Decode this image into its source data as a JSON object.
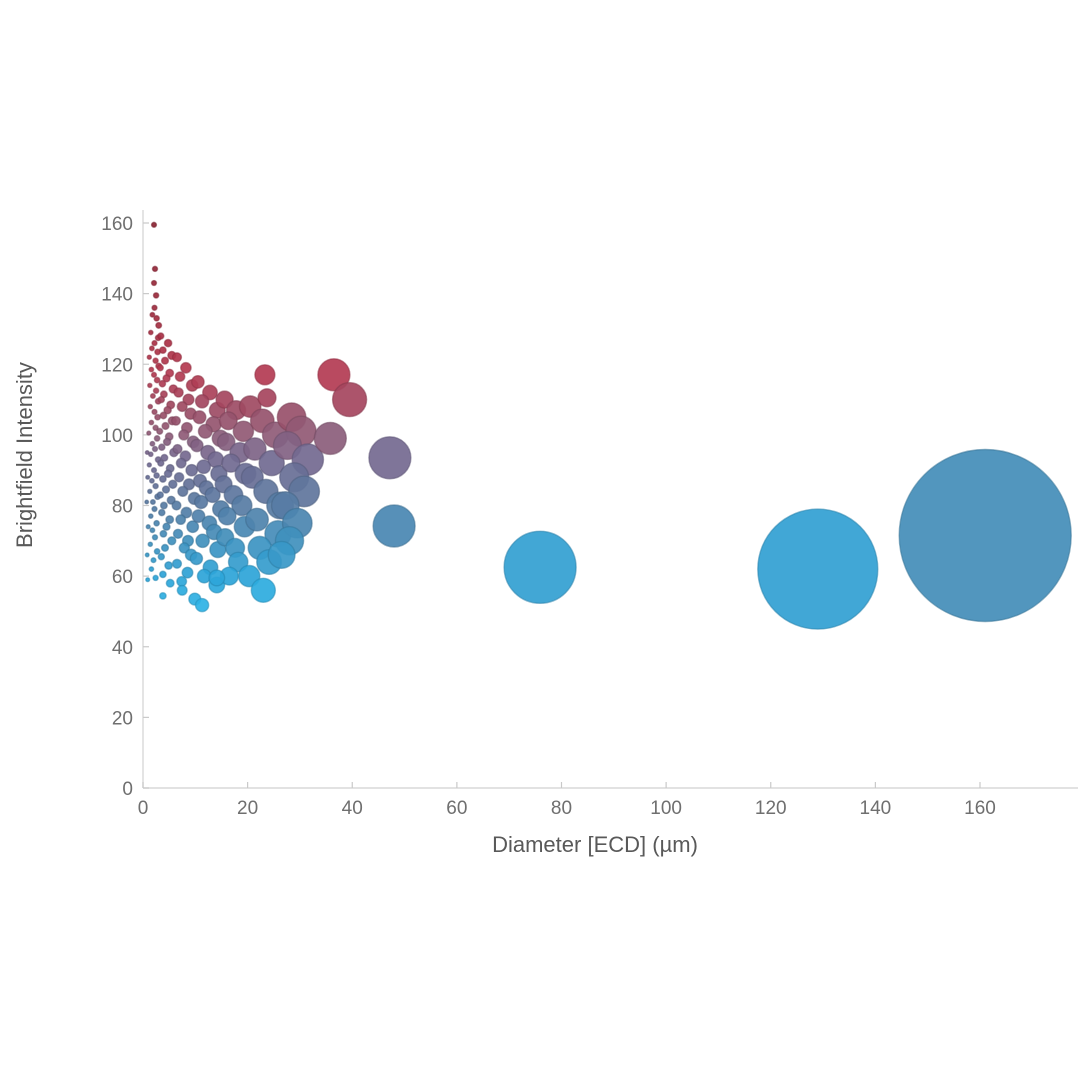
{
  "chart_data": {
    "type": "scatter",
    "title": "",
    "xlabel": "Diameter [ECD] (µm)",
    "ylabel": "Brightfield Intensity",
    "xlim": [
      0,
      178
    ],
    "ylim": [
      0,
      164
    ],
    "x_ticks": [
      0,
      20,
      40,
      60,
      80,
      100,
      120,
      140,
      160
    ],
    "y_ticks": [
      0,
      20,
      40,
      60,
      80,
      100,
      120,
      140,
      160
    ],
    "grid": false,
    "legend": "none",
    "size_encoding": "bubble radius proportional to x value (ECD diameter)",
    "color_encoding": "bubble color mapped to Brightfield Intensity: high=dark red, mid=purple, low=cyan",
    "axis_color": "#d9d9d9",
    "tick_color": "#c9c9c9",
    "color_stops": [
      [
        50,
        "#2eb5e8"
      ],
      [
        60,
        "#2da4d8"
      ],
      [
        70,
        "#4090bd"
      ],
      [
        78,
        "#527fa8"
      ],
      [
        86,
        "#647198"
      ],
      [
        94,
        "#75688f"
      ],
      [
        100,
        "#8f5b77"
      ],
      [
        106,
        "#9a4e67"
      ],
      [
        112,
        "#aa4159"
      ],
      [
        118,
        "#b53a51"
      ],
      [
        126,
        "#ab3146"
      ],
      [
        140,
        "#9a2a3c"
      ],
      [
        160,
        "#8c2433"
      ]
    ],
    "points": [
      [
        2.1,
        159.5
      ],
      [
        2.3,
        147.0
      ],
      [
        2.1,
        143.0
      ],
      [
        2.5,
        139.5
      ],
      [
        2.2,
        136.0
      ],
      [
        1.8,
        134.0
      ],
      [
        2.6,
        133.0
      ],
      [
        3.0,
        131.0
      ],
      [
        1.5,
        129.0
      ],
      [
        2.9,
        127.5
      ],
      [
        2.2,
        126.0
      ],
      [
        1.7,
        124.5
      ],
      [
        2.8,
        123.5
      ],
      [
        1.2,
        122.0
      ],
      [
        2.4,
        121.0
      ],
      [
        3.0,
        119.5
      ],
      [
        1.6,
        118.5
      ],
      [
        2.1,
        117.0
      ],
      [
        2.7,
        115.5
      ],
      [
        1.3,
        114.0
      ],
      [
        2.5,
        112.5
      ],
      [
        1.9,
        111.0
      ],
      [
        2.9,
        109.5
      ],
      [
        1.4,
        108.0
      ],
      [
        2.2,
        106.5
      ],
      [
        2.8,
        105.0
      ],
      [
        1.6,
        103.5
      ],
      [
        2.4,
        102.0
      ],
      [
        1.1,
        100.5
      ],
      [
        2.7,
        99.0
      ],
      [
        1.8,
        97.5
      ],
      [
        2.3,
        96.0
      ],
      [
        1.5,
        94.5
      ],
      [
        2.9,
        93.0
      ],
      [
        1.2,
        91.5
      ],
      [
        2.1,
        90.0
      ],
      [
        2.6,
        88.5
      ],
      [
        1.7,
        87.0
      ],
      [
        2.4,
        85.5
      ],
      [
        1.3,
        84.0
      ],
      [
        2.8,
        82.5
      ],
      [
        1.9,
        81.0
      ],
      [
        2.2,
        79.0
      ],
      [
        1.5,
        77.0
      ],
      [
        2.6,
        75.0
      ],
      [
        1.8,
        73.0
      ],
      [
        2.3,
        71.0
      ],
      [
        1.4,
        69.0
      ],
      [
        2.7,
        67.0
      ],
      [
        2.0,
        64.5
      ],
      [
        1.6,
        62.0
      ],
      [
        2.4,
        59.5
      ],
      [
        0.8,
        95.0
      ],
      [
        0.9,
        88.0
      ],
      [
        0.7,
        81.0
      ],
      [
        1.0,
        74.0
      ],
      [
        0.8,
        66.0
      ],
      [
        0.9,
        59.0
      ],
      [
        3.4,
        128.0
      ],
      [
        4.8,
        126.0
      ],
      [
        3.8,
        124.0
      ],
      [
        5.5,
        122.5
      ],
      [
        4.2,
        121.0
      ],
      [
        3.3,
        119.0
      ],
      [
        5.1,
        117.5
      ],
      [
        4.5,
        116.0
      ],
      [
        3.7,
        114.5
      ],
      [
        5.8,
        113.0
      ],
      [
        4.0,
        111.5
      ],
      [
        3.5,
        110.0
      ],
      [
        5.3,
        108.5
      ],
      [
        4.7,
        107.0
      ],
      [
        3.9,
        105.5
      ],
      [
        5.6,
        104.0
      ],
      [
        4.3,
        102.5
      ],
      [
        3.2,
        101.0
      ],
      [
        5.0,
        99.5
      ],
      [
        4.6,
        98.0
      ],
      [
        3.6,
        96.5
      ],
      [
        5.9,
        95.0
      ],
      [
        4.1,
        93.5
      ],
      [
        3.4,
        92.0
      ],
      [
        5.2,
        90.5
      ],
      [
        4.8,
        89.0
      ],
      [
        3.8,
        87.5
      ],
      [
        5.7,
        86.0
      ],
      [
        4.4,
        84.5
      ],
      [
        3.3,
        83.0
      ],
      [
        5.4,
        81.5
      ],
      [
        4.0,
        80.0
      ],
      [
        3.6,
        78.0
      ],
      [
        5.1,
        76.0
      ],
      [
        4.5,
        74.0
      ],
      [
        3.9,
        72.0
      ],
      [
        5.5,
        70.0
      ],
      [
        4.2,
        68.0
      ],
      [
        3.5,
        65.5
      ],
      [
        4.9,
        63.0
      ],
      [
        3.8,
        60.5
      ],
      [
        5.2,
        58.0
      ],
      [
        3.8,
        54.4
      ],
      [
        6.5,
        122.0
      ],
      [
        8.2,
        119.0
      ],
      [
        7.1,
        116.5
      ],
      [
        9.4,
        114.0
      ],
      [
        6.8,
        112.0
      ],
      [
        8.7,
        110.0
      ],
      [
        7.5,
        108.0
      ],
      [
        9.1,
        106.0
      ],
      [
        6.3,
        104.0
      ],
      [
        8.4,
        102.0
      ],
      [
        7.8,
        100.0
      ],
      [
        9.6,
        98.0
      ],
      [
        6.6,
        96.0
      ],
      [
        8.1,
        94.0
      ],
      [
        7.3,
        92.0
      ],
      [
        9.3,
        90.0
      ],
      [
        6.9,
        88.0
      ],
      [
        8.8,
        86.0
      ],
      [
        7.6,
        84.0
      ],
      [
        9.8,
        82.0
      ],
      [
        6.4,
        80.0
      ],
      [
        8.3,
        78.0
      ],
      [
        7.2,
        76.0
      ],
      [
        9.5,
        74.0
      ],
      [
        6.7,
        72.0
      ],
      [
        8.6,
        70.0
      ],
      [
        7.9,
        68.0
      ],
      [
        9.2,
        66.0
      ],
      [
        6.5,
        63.5
      ],
      [
        8.5,
        61.0
      ],
      [
        7.4,
        58.5
      ],
      [
        7.5,
        56.0
      ],
      [
        9.9,
        53.5
      ],
      [
        10.5,
        115.0
      ],
      [
        12.8,
        112.0
      ],
      [
        11.3,
        109.5
      ],
      [
        14.2,
        107.0
      ],
      [
        10.8,
        105.0
      ],
      [
        13.5,
        103.0
      ],
      [
        11.9,
        101.0
      ],
      [
        14.8,
        99.0
      ],
      [
        10.3,
        97.0
      ],
      [
        12.4,
        95.0
      ],
      [
        13.9,
        93.0
      ],
      [
        11.6,
        91.0
      ],
      [
        14.5,
        89.0
      ],
      [
        10.9,
        87.0
      ],
      [
        12.1,
        85.0
      ],
      [
        13.3,
        83.0
      ],
      [
        11.1,
        81.0
      ],
      [
        14.9,
        79.0
      ],
      [
        10.6,
        77.0
      ],
      [
        12.7,
        75.0
      ],
      [
        13.6,
        72.5
      ],
      [
        11.4,
        70.0
      ],
      [
        14.3,
        67.5
      ],
      [
        10.2,
        65.0
      ],
      [
        12.9,
        62.5
      ],
      [
        11.7,
        60.0
      ],
      [
        14.1,
        57.5
      ],
      [
        11.3,
        51.8
      ],
      [
        15.6,
        110.0
      ],
      [
        17.8,
        107.0
      ],
      [
        16.3,
        104.0
      ],
      [
        19.2,
        101.0
      ],
      [
        15.9,
        98.0
      ],
      [
        18.5,
        95.0
      ],
      [
        16.8,
        92.0
      ],
      [
        19.6,
        89.0
      ],
      [
        15.4,
        86.0
      ],
      [
        17.3,
        83.0
      ],
      [
        18.9,
        80.0
      ],
      [
        16.1,
        77.0
      ],
      [
        19.4,
        74.0
      ],
      [
        15.7,
        71.0
      ],
      [
        17.6,
        68.0
      ],
      [
        18.2,
        64.0
      ],
      [
        16.5,
        60.0
      ],
      [
        14.1,
        59.5
      ],
      [
        20.5,
        108.0
      ],
      [
        22.8,
        104.0
      ],
      [
        25.3,
        100.0
      ],
      [
        21.4,
        96.0
      ],
      [
        24.6,
        92.0
      ],
      [
        20.9,
        88.0
      ],
      [
        23.5,
        84.0
      ],
      [
        26.2,
        80.0
      ],
      [
        21.8,
        76.0
      ],
      [
        25.8,
        72.0
      ],
      [
        22.3,
        68.0
      ],
      [
        24.1,
        64.0
      ],
      [
        20.3,
        60.0
      ],
      [
        28.4,
        105.0
      ],
      [
        30.2,
        101.0
      ],
      [
        27.6,
        97.0
      ],
      [
        31.5,
        93.0
      ],
      [
        28.9,
        88.0
      ],
      [
        30.8,
        84.0
      ],
      [
        27.2,
        80.0
      ],
      [
        29.5,
        75.0
      ],
      [
        28.0,
        70.0
      ],
      [
        26.5,
        66.0
      ],
      [
        23.3,
        117.0,
        10
      ],
      [
        23.7,
        110.5,
        9
      ],
      [
        36.5,
        117.0,
        16
      ],
      [
        39.5,
        110.0,
        17
      ],
      [
        35.8,
        99.0,
        16
      ],
      [
        47.2,
        93.5,
        21
      ],
      [
        48.0,
        74.2,
        21
      ],
      [
        23.0,
        56.0,
        12
      ],
      [
        75.9,
        62.5,
        36
      ],
      [
        129.0,
        62.0,
        60
      ],
      [
        161.0,
        71.5,
        86
      ]
    ]
  }
}
